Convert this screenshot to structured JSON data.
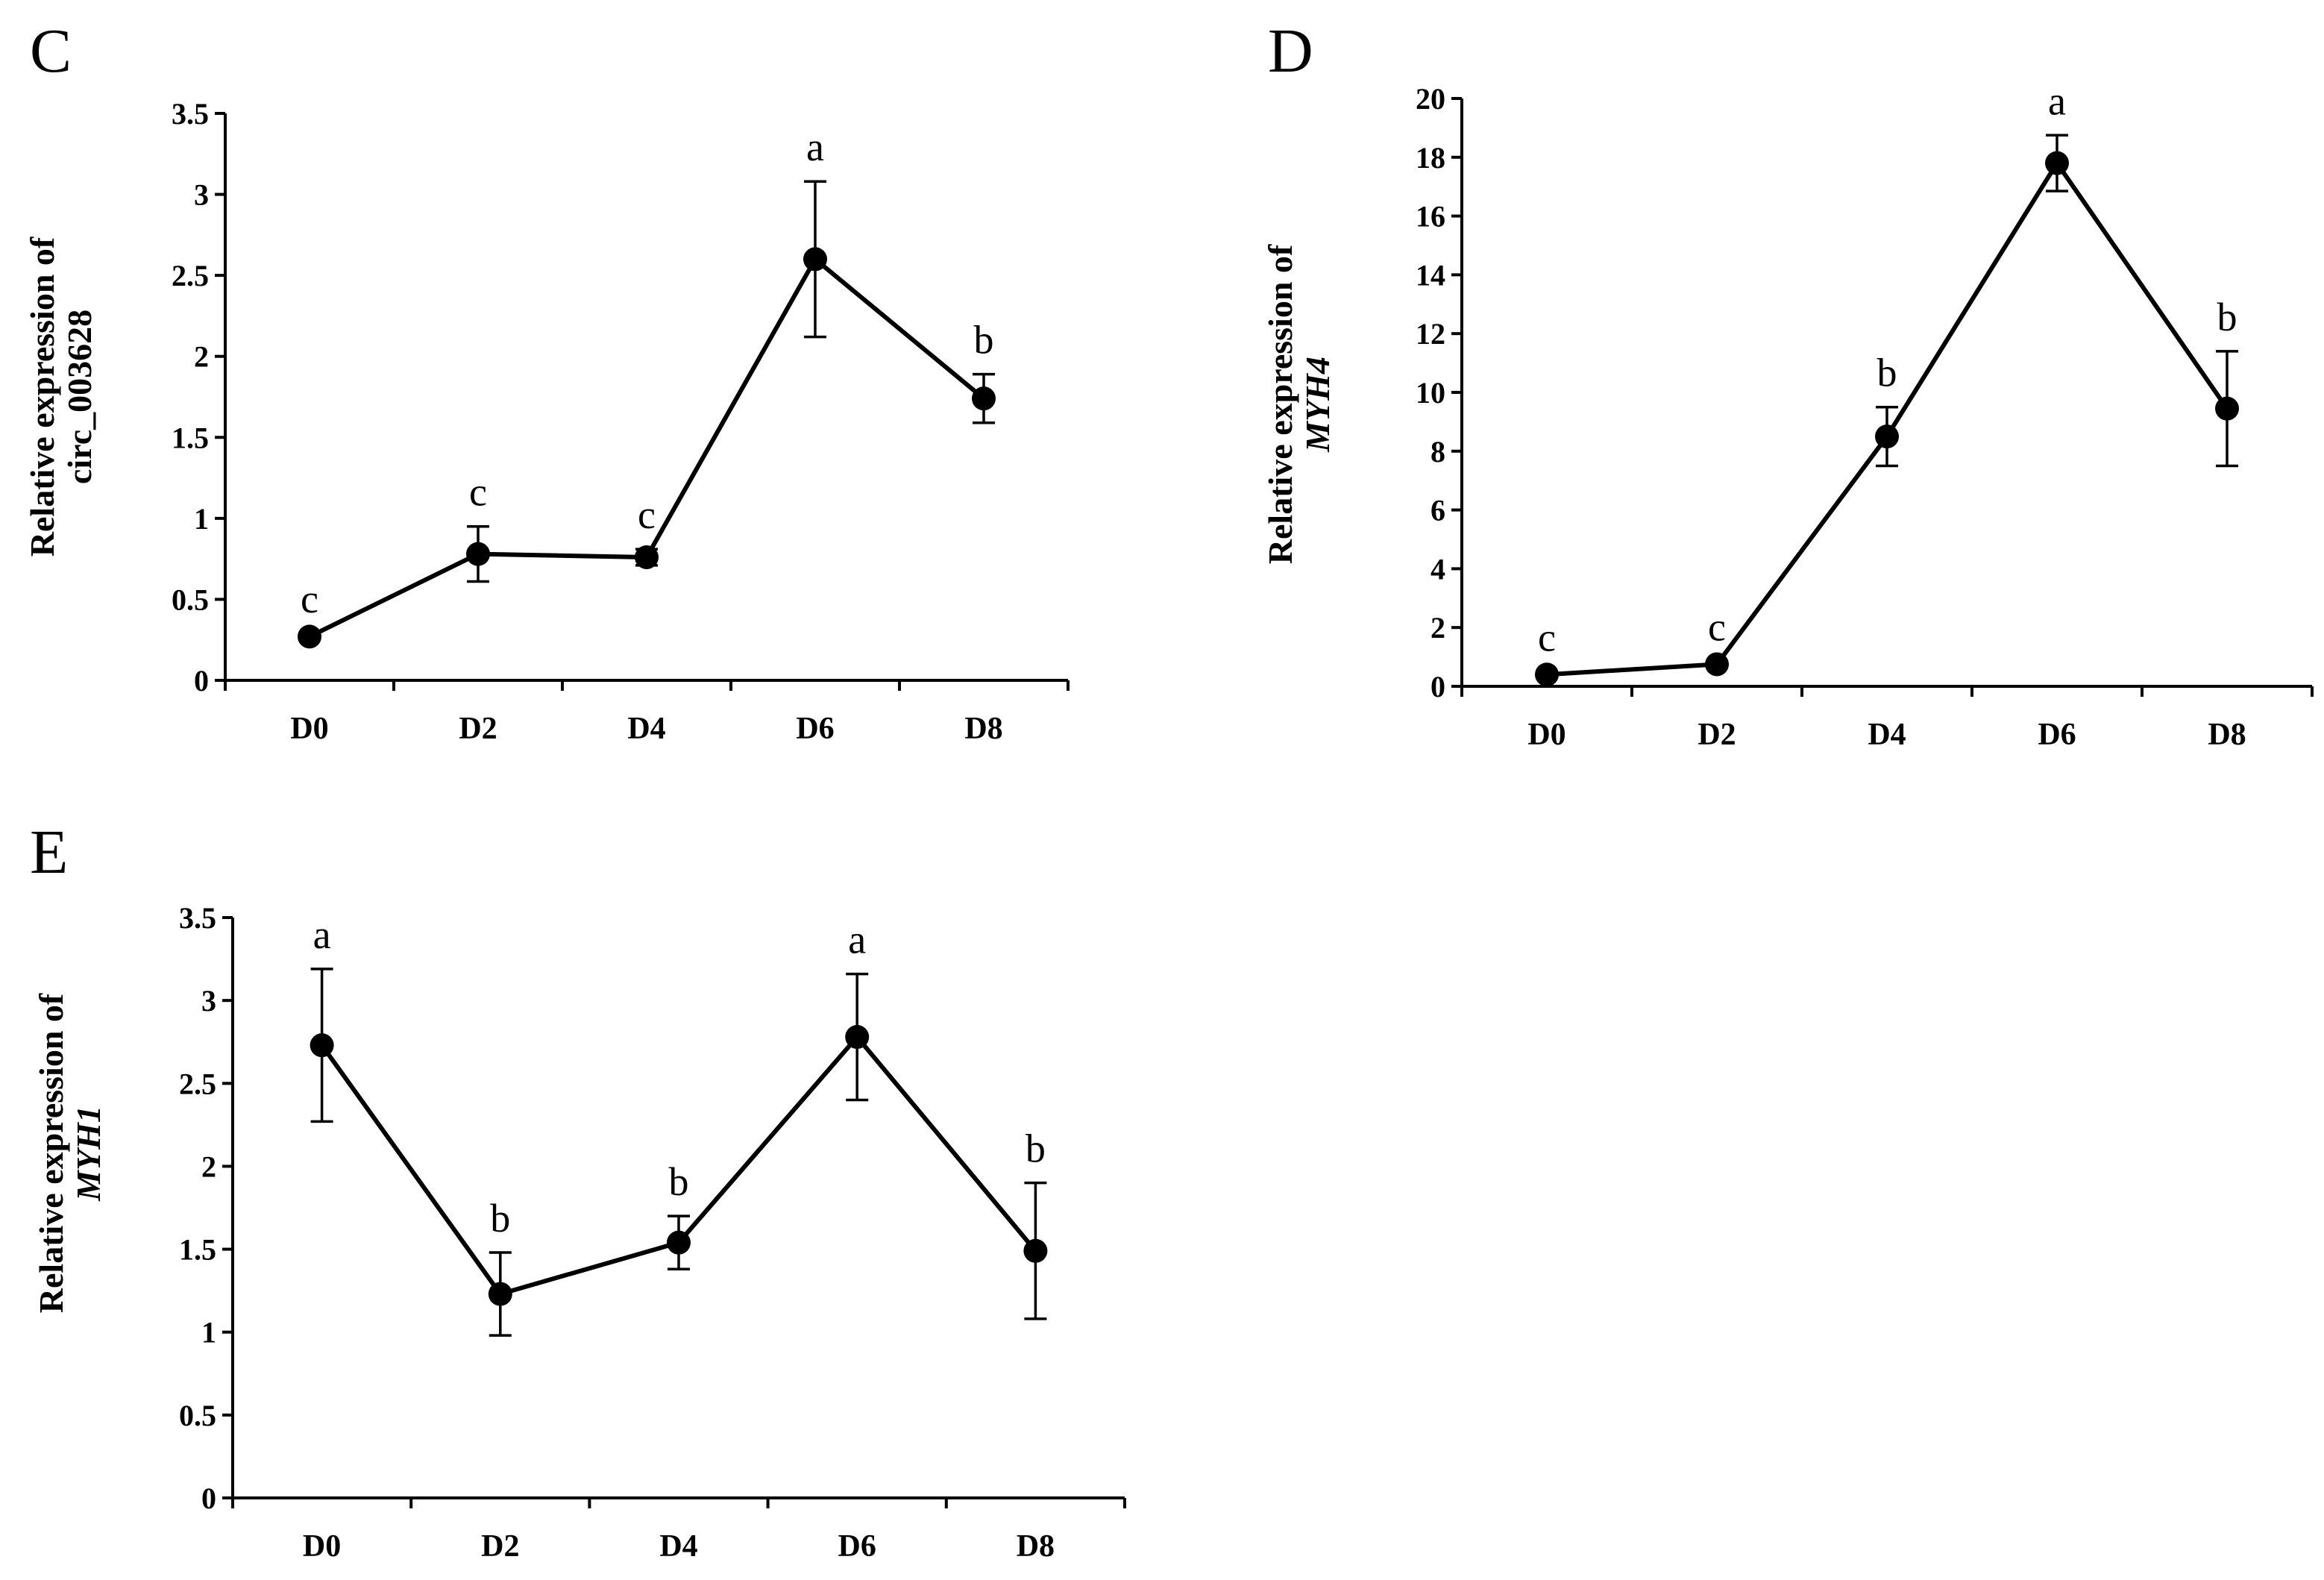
{
  "chart_data": [
    {
      "panel": "C",
      "type": "line",
      "title": "",
      "xlabel": "",
      "ylabel_line1": "Relative expression of",
      "ylabel_line2": "circ_003628",
      "ylabel_line2_italic": false,
      "ylim": [
        0,
        3.5
      ],
      "yticks": [
        0,
        0.5,
        1,
        1.5,
        2,
        2.5,
        3,
        3.5
      ],
      "ytick_labels": [
        "0",
        "0.5",
        "1",
        "1.5",
        "2",
        "2.5",
        "3",
        "3.5"
      ],
      "categories": [
        "D0",
        "D2",
        "D4",
        "D6",
        "D8"
      ],
      "values": [
        0.27,
        0.78,
        0.76,
        2.6,
        1.74
      ],
      "errors": [
        0.02,
        0.17,
        0.05,
        0.48,
        0.15
      ],
      "significance": [
        "c",
        "c",
        "c",
        "a",
        "b"
      ],
      "grid": false
    },
    {
      "panel": "D",
      "type": "line",
      "title": "",
      "xlabel": "",
      "ylabel_line1": "Relative expression of",
      "ylabel_line2": "MYH4",
      "ylabel_line2_italic": true,
      "ylim": [
        0,
        20
      ],
      "yticks": [
        0,
        2,
        4,
        6,
        8,
        10,
        12,
        14,
        16,
        18,
        20
      ],
      "ytick_labels": [
        "0",
        "2",
        "4",
        "6",
        "8",
        "10",
        "12",
        "14",
        "16",
        "18",
        "20"
      ],
      "categories": [
        "D0",
        "D2",
        "D4",
        "D6",
        "D8"
      ],
      "values": [
        0.4,
        0.75,
        8.5,
        17.8,
        9.45
      ],
      "errors": [
        0.1,
        0.1,
        1.0,
        0.95,
        1.95
      ],
      "significance": [
        "c",
        "c",
        "b",
        "a",
        "b"
      ],
      "grid": false
    },
    {
      "panel": "E",
      "type": "line",
      "title": "",
      "xlabel": "",
      "ylabel_line1": "Relative expression of",
      "ylabel_line2": "MYH1",
      "ylabel_line2_italic": true,
      "ylim": [
        0,
        3.5
      ],
      "yticks": [
        0,
        0.5,
        1,
        1.5,
        2,
        2.5,
        3,
        3.5
      ],
      "ytick_labels": [
        "0",
        "0.5",
        "1",
        "1.5",
        "2",
        "2.5",
        "3",
        "3.5"
      ],
      "categories": [
        "D0",
        "D2",
        "D4",
        "D6",
        "D8"
      ],
      "values": [
        2.73,
        1.23,
        1.54,
        2.78,
        1.49
      ],
      "errors": [
        0.46,
        0.25,
        0.16,
        0.38,
        0.41
      ],
      "significance": [
        "a",
        "b",
        "b",
        "a",
        "b"
      ],
      "grid": false
    }
  ],
  "style": {
    "line_color": "#000000",
    "marker_color": "#000000",
    "background": "#ffffff"
  }
}
